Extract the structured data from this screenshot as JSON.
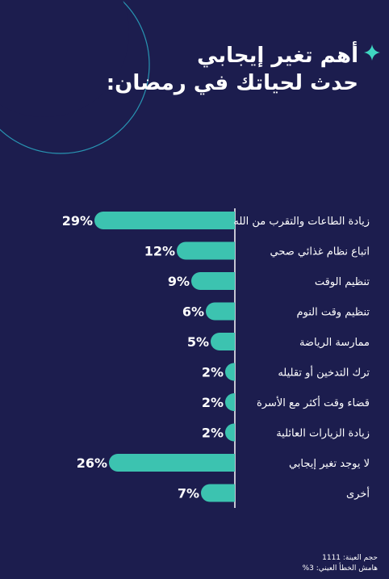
{
  "title": {
    "line1": "أهم تغير إيجابي",
    "line2": "حدث لحياتك في رمضان:"
  },
  "colors": {
    "background": "#1c1d4e",
    "bar": "#3cc3b0",
    "accent": "#3fd6c1",
    "text": "#ffffff"
  },
  "chart_data": {
    "type": "bar",
    "orientation": "horizontal",
    "categories": [
      "زيادة الطاعات والتقرب من الله",
      "اتباع نظام غذائي صحي",
      "تنظيم الوقت",
      "تنظيم وقت النوم",
      "ممارسة الرياضة",
      "ترك التدخين أو تقليله",
      "قضاء وقت أكثر مع الأسرة",
      "زيادة الزيارات العائلية",
      "لا يوجد تغير إيجابي",
      "أخرى"
    ],
    "values": [
      29,
      12,
      9,
      6,
      5,
      2,
      2,
      2,
      26,
      7
    ],
    "value_labels": [
      "29%",
      "12%",
      "9%",
      "6%",
      "5%",
      "2%",
      "2%",
      "2%",
      "26%",
      "7%"
    ],
    "unit": "%",
    "grid": false
  },
  "footer": {
    "sample_size": "حجم العينة: 1111",
    "margin_of_error": "هامش الخطأ العيني: 3%"
  }
}
